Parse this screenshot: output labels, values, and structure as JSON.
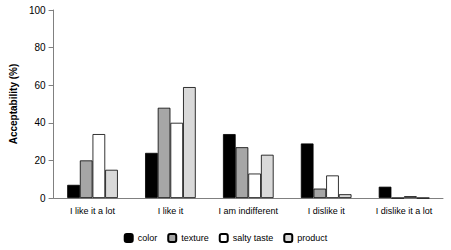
{
  "chart_data": {
    "type": "bar",
    "y_label": "Acceptability (%)",
    "categories": [
      "I like it a lot",
      "I like it",
      "I am indifferent",
      "I dislike it",
      "I dislike it a lot"
    ],
    "series": [
      {
        "name": "color",
        "color": "#000000",
        "values": [
          7,
          24,
          34,
          29,
          6
        ]
      },
      {
        "name": "texture",
        "color": "#a6a6a6",
        "values": [
          20,
          48,
          27,
          5,
          0
        ]
      },
      {
        "name": "salty taste",
        "color": "#ffffff",
        "values": [
          34,
          40,
          13,
          12,
          1
        ]
      },
      {
        "name": "product",
        "color": "#d9d9d9",
        "values": [
          15,
          59,
          23,
          2,
          0
        ]
      }
    ],
    "ylim": [
      0,
      100
    ],
    "yticks": [
      0,
      20,
      40,
      60,
      80,
      100
    ],
    "grid": false,
    "legend": "bottom"
  }
}
